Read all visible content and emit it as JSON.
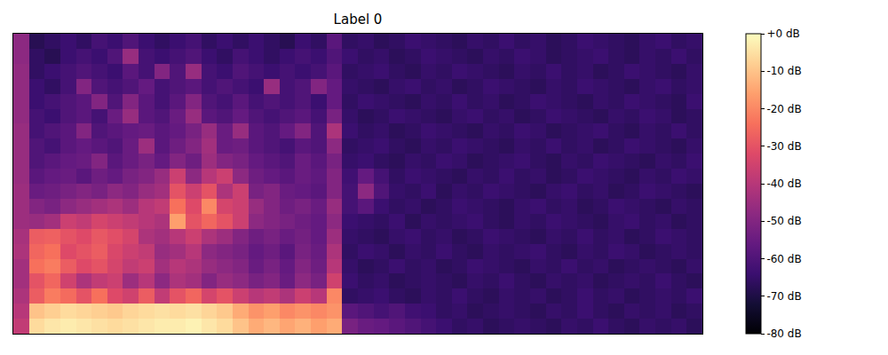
{
  "chart_data": {
    "type": "heatmap",
    "title": "Label 0",
    "tick_labels": false,
    "colorbar": {
      "range": [
        -80,
        0
      ],
      "ticks": [
        {
          "value": 0,
          "label": "+0 dB"
        },
        {
          "value": -10,
          "label": "-10 dB"
        },
        {
          "value": -20,
          "label": "-20 dB"
        },
        {
          "value": -30,
          "label": "-30 dB"
        },
        {
          "value": -40,
          "label": "-40 dB"
        },
        {
          "value": -50,
          "label": "-50 dB"
        },
        {
          "value": -60,
          "label": "-60 dB"
        },
        {
          "value": -70,
          "label": "-70 dB"
        },
        {
          "value": -80,
          "label": "-80 dB"
        }
      ]
    },
    "z": [
      [
        -38,
        -6,
        -4,
        -3,
        -4,
        -5,
        -6,
        -5,
        -4,
        -3,
        -3,
        -2,
        -4,
        -6,
        -10,
        -14,
        -12,
        -15,
        -13,
        -16,
        -14,
        -52,
        -55,
        -56,
        -58,
        -60,
        -62,
        -64,
        -66,
        -65,
        -67,
        -66,
        -65,
        -66,
        -67,
        -65,
        -66,
        -64,
        -66,
        -67,
        -65,
        -66,
        -65,
        -67
      ],
      [
        -40,
        -10,
        -8,
        -6,
        -7,
        -8,
        -9,
        -7,
        -6,
        -5,
        -6,
        -5,
        -7,
        -9,
        -14,
        -18,
        -16,
        -20,
        -18,
        -20,
        -18,
        -58,
        -60,
        -62,
        -60,
        -63,
        -64,
        -66,
        -65,
        -67,
        -66,
        -65,
        -66,
        -67,
        -65,
        -66,
        -64,
        -66,
        -67,
        -65,
        -66,
        -65,
        -67,
        -66
      ],
      [
        -42,
        -28,
        -22,
        -25,
        -30,
        -24,
        -32,
        -35,
        -28,
        -38,
        -30,
        -26,
        -34,
        -30,
        -36,
        -40,
        -38,
        -42,
        -36,
        -40,
        -20,
        -66,
        -65,
        -64,
        -66,
        -67,
        -65,
        -66,
        -64,
        -66,
        -67,
        -65,
        -66,
        -65,
        -67,
        -66,
        -64,
        -66,
        -65,
        -67,
        -66,
        -65,
        -66,
        -64
      ],
      [
        -44,
        -30,
        -26,
        -35,
        -42,
        -38,
        -36,
        -45,
        -40,
        -48,
        -42,
        -44,
        -50,
        -46,
        -48,
        -52,
        -50,
        -55,
        -48,
        -52,
        -35,
        -64,
        -66,
        -65,
        -67,
        -66,
        -65,
        -66,
        -67,
        -65,
        -66,
        -64,
        -66,
        -67,
        -65,
        -66,
        -65,
        -67,
        -66,
        -65,
        -66,
        -64,
        -66,
        -67
      ],
      [
        -44,
        -24,
        -22,
        -28,
        -32,
        -30,
        -34,
        -38,
        -36,
        -44,
        -40,
        -42,
        -46,
        -48,
        -50,
        -55,
        -52,
        -56,
        -50,
        -54,
        -40,
        -65,
        -67,
        -66,
        -64,
        -66,
        -65,
        -67,
        -66,
        -64,
        -65,
        -66,
        -67,
        -65,
        -66,
        -64,
        -66,
        -65,
        -67,
        -66,
        -65,
        -66,
        -67,
        -65
      ],
      [
        -42,
        -26,
        -24,
        -32,
        -30,
        -28,
        -33,
        -36,
        -38,
        -46,
        -44,
        -40,
        -48,
        -50,
        -52,
        -56,
        -54,
        -58,
        -52,
        -55,
        -42,
        -66,
        -64,
        -65,
        -67,
        -65,
        -66,
        -64,
        -66,
        -67,
        -65,
        -66,
        -65,
        -64,
        -66,
        -67,
        -65,
        -66,
        -64,
        -65,
        -67,
        -66,
        -65,
        -66
      ],
      [
        -43,
        -28,
        -27,
        -30,
        -32,
        -29,
        -31,
        -34,
        -42,
        -44,
        -40,
        -36,
        -42,
        -45,
        -50,
        -54,
        -52,
        -55,
        -53,
        -56,
        -45,
        -65,
        -66,
        -67,
        -65,
        -64,
        -66,
        -65,
        -67,
        -66,
        -64,
        -65,
        -66,
        -67,
        -65,
        -66,
        -64,
        -66,
        -65,
        -67,
        -66,
        -64,
        -65,
        -66
      ],
      [
        -45,
        -46,
        -44,
        -36,
        -38,
        -34,
        -36,
        -38,
        -40,
        -42,
        -16,
        -30,
        -26,
        -30,
        -36,
        -48,
        -50,
        -52,
        -54,
        -56,
        -48,
        -64,
        -65,
        -66,
        -64,
        -67,
        -65,
        -66,
        -65,
        -64,
        -66,
        -67,
        -65,
        -66,
        -64,
        -65,
        -66,
        -67,
        -65,
        -64,
        -66,
        -65,
        -67,
        -66
      ],
      [
        -45,
        -50,
        -52,
        -48,
        -46,
        -44,
        -42,
        -45,
        -40,
        -38,
        -24,
        -32,
        -20,
        -34,
        -36,
        -46,
        -50,
        -54,
        -52,
        -55,
        -46,
        -62,
        -58,
        -64,
        -66,
        -65,
        -67,
        -66,
        -64,
        -65,
        -66,
        -67,
        -65,
        -64,
        -66,
        -65,
        -67,
        -66,
        -64,
        -65,
        -66,
        -67,
        -65,
        -66
      ],
      [
        -45,
        -55,
        -54,
        -52,
        -50,
        -52,
        -48,
        -50,
        -46,
        -44,
        -30,
        -36,
        -30,
        -42,
        -36,
        -52,
        -50,
        -55,
        -56,
        -58,
        -50,
        -62,
        -48,
        -60,
        -65,
        -66,
        -64,
        -67,
        -65,
        -66,
        -64,
        -65,
        -66,
        -67,
        -65,
        -64,
        -66,
        -65,
        -67,
        -66,
        -64,
        -65,
        -66,
        -67
      ],
      [
        -46,
        -58,
        -56,
        -55,
        -58,
        -54,
        -56,
        -52,
        -50,
        -46,
        -36,
        -48,
        -40,
        -36,
        -48,
        -54,
        -56,
        -58,
        -55,
        -57,
        -50,
        -63,
        -56,
        -62,
        -66,
        -64,
        -65,
        -66,
        -67,
        -65,
        -66,
        -64,
        -66,
        -65,
        -67,
        -66,
        -64,
        -65,
        -66,
        -67,
        -65,
        -66,
        -64,
        -65
      ],
      [
        -46,
        -60,
        -58,
        -56,
        -55,
        -50,
        -58,
        -55,
        -52,
        -56,
        -50,
        -54,
        -45,
        -50,
        -52,
        -56,
        -58,
        -60,
        -55,
        -58,
        -52,
        -65,
        -64,
        -66,
        -67,
        -65,
        -66,
        -64,
        -65,
        -67,
        -66,
        -65,
        -64,
        -66,
        -67,
        -65,
        -66,
        -64,
        -65,
        -66,
        -67,
        -65,
        -66,
        -64
      ],
      [
        -46,
        -60,
        -62,
        -58,
        -56,
        -58,
        -60,
        -55,
        -45,
        -58,
        -54,
        -50,
        -44,
        -55,
        -54,
        -58,
        -60,
        -62,
        -58,
        -60,
        -48,
        -66,
        -65,
        -64,
        -66,
        -67,
        -65,
        -66,
        -64,
        -65,
        -66,
        -67,
        -65,
        -66,
        -64,
        -66,
        -65,
        -67,
        -66,
        -64,
        -65,
        -66,
        -67,
        -65
      ],
      [
        -46,
        -62,
        -60,
        -58,
        -50,
        -60,
        -58,
        -56,
        -55,
        -58,
        -56,
        -52,
        -46,
        -55,
        -46,
        -58,
        -60,
        -56,
        -50,
        -60,
        -42,
        -64,
        -66,
        -65,
        -67,
        -66,
        -64,
        -65,
        -66,
        -67,
        -65,
        -66,
        -64,
        -65,
        -67,
        -66,
        -65,
        -64,
        -66,
        -67,
        -65,
        -66,
        -64,
        -66
      ],
      [
        -47,
        -62,
        -64,
        -60,
        -58,
        -62,
        -55,
        -46,
        -58,
        -60,
        -55,
        -46,
        -58,
        -60,
        -56,
        -60,
        -62,
        -60,
        -58,
        -62,
        -52,
        -65,
        -67,
        -66,
        -64,
        -65,
        -66,
        -67,
        -65,
        -64,
        -66,
        -65,
        -67,
        -66,
        -64,
        -65,
        -66,
        -67,
        -65,
        -66,
        -64,
        -65,
        -67,
        -66
      ],
      [
        -47,
        -64,
        -62,
        -60,
        -58,
        -50,
        -60,
        -50,
        -58,
        -62,
        -58,
        -50,
        -60,
        -62,
        -58,
        -62,
        -60,
        -62,
        -60,
        -64,
        -56,
        -66,
        -64,
        -65,
        -66,
        -67,
        -65,
        -66,
        -64,
        -66,
        -65,
        -67,
        -66,
        -64,
        -65,
        -66,
        -67,
        -65,
        -66,
        -64,
        -65,
        -66,
        -67,
        -64
      ],
      [
        -47,
        -64,
        -66,
        -62,
        -50,
        -60,
        -62,
        -60,
        -56,
        -62,
        -60,
        -58,
        -62,
        -60,
        -62,
        -64,
        -46,
        -62,
        -60,
        -50,
        -56,
        -65,
        -66,
        -67,
        -65,
        -64,
        -66,
        -65,
        -67,
        -66,
        -64,
        -65,
        -66,
        -67,
        -65,
        -66,
        -64,
        -65,
        -66,
        -67,
        -65,
        -64,
        -66,
        -65
      ],
      [
        -47,
        -66,
        -64,
        -62,
        -60,
        -62,
        -64,
        -58,
        -62,
        -50,
        -60,
        -46,
        -62,
        -64,
        -60,
        -62,
        -64,
        -62,
        -64,
        -62,
        -58,
        -66,
        -65,
        -64,
        -66,
        -67,
        -65,
        -66,
        -64,
        -65,
        -66,
        -67,
        -65,
        -66,
        -64,
        -66,
        -65,
        -67,
        -66,
        -64,
        -65,
        -66,
        -67,
        -65
      ],
      [
        -48,
        -66,
        -68,
        -64,
        -62,
        -64,
        -60,
        -46,
        -62,
        -64,
        -62,
        -60,
        -64,
        -66,
        -62,
        -64,
        -66,
        -64,
        -62,
        -64,
        -60,
        -64,
        -66,
        -65,
        -67,
        -66,
        -64,
        -65,
        -66,
        -67,
        -65,
        -66,
        -64,
        -65,
        -67,
        -66,
        -65,
        -64,
        -66,
        -67,
        -65,
        -66,
        -64,
        -66
      ],
      [
        -48,
        -68,
        -66,
        -64,
        -66,
        -62,
        -64,
        -60,
        -64,
        -66,
        -64,
        -62,
        -66,
        -64,
        -66,
        -64,
        -66,
        -68,
        -64,
        -66,
        -58,
        -66,
        -65,
        -67,
        -66,
        -64,
        -65,
        -66,
        -67,
        -65,
        -66,
        -64,
        -66,
        -65,
        -67,
        -66,
        -64,
        -65,
        -66,
        -67,
        -65,
        -64,
        -66,
        -65
      ]
    ]
  }
}
